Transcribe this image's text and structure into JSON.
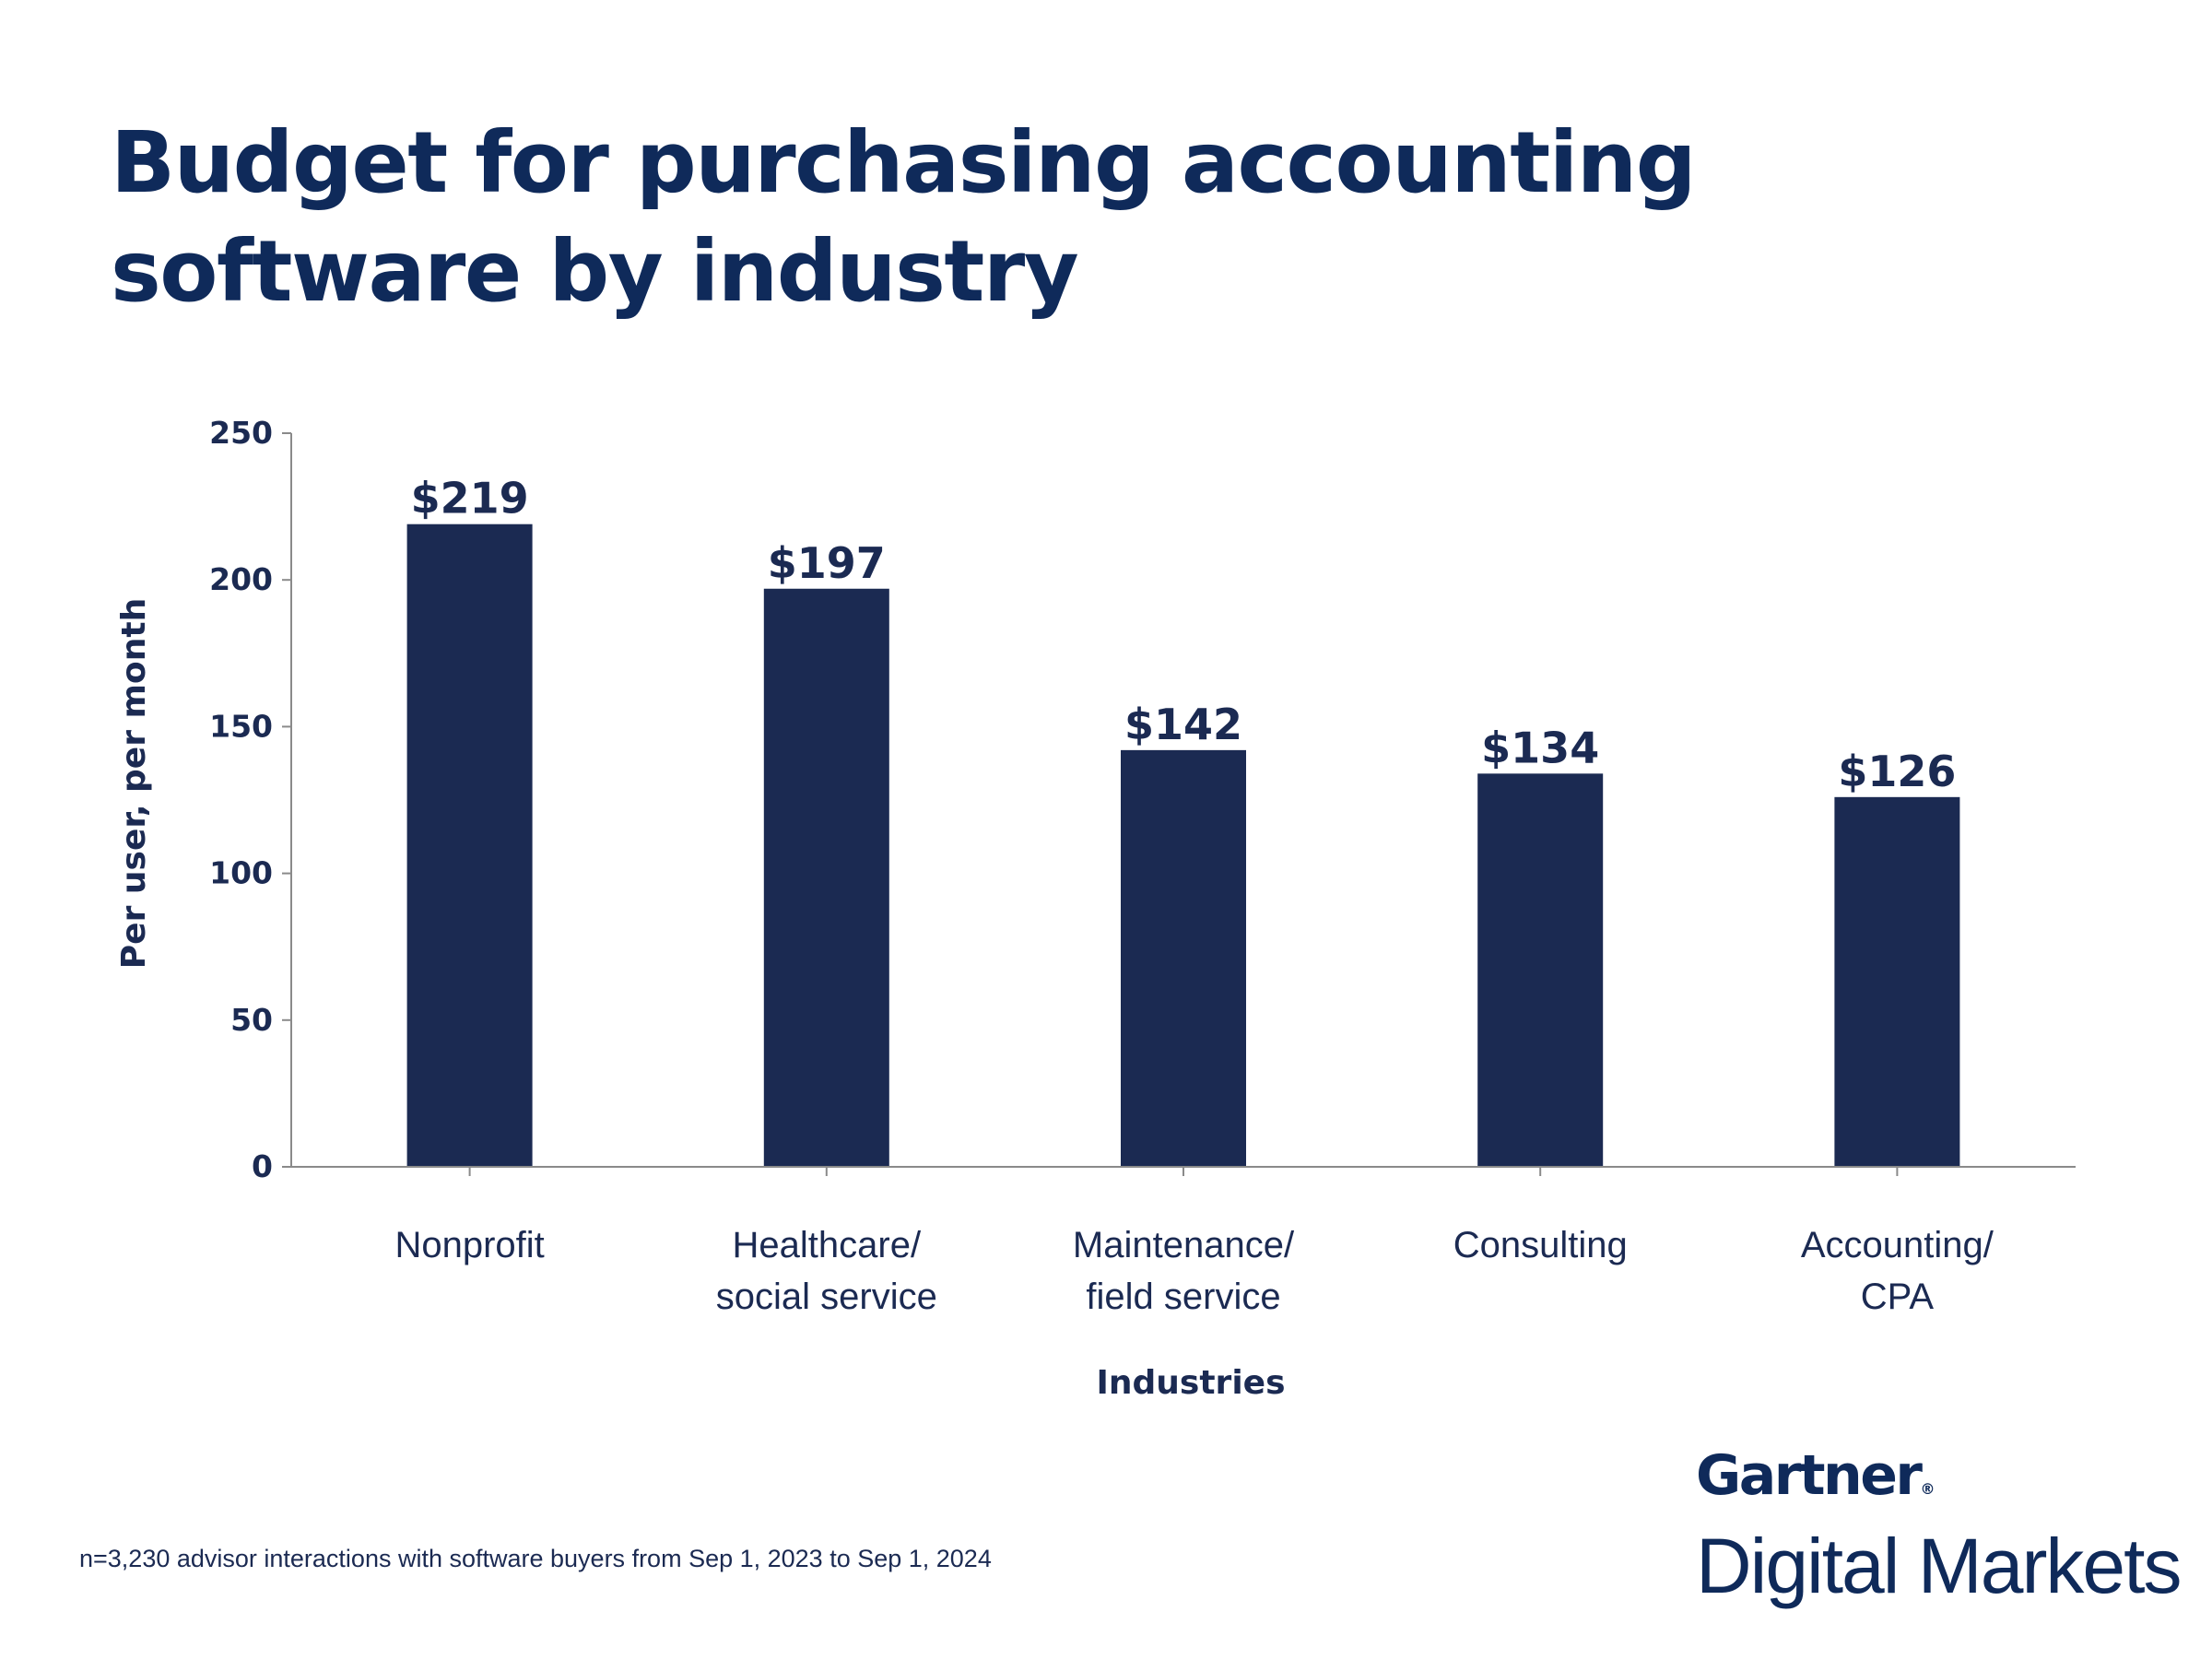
{
  "chart_data": {
    "type": "bar",
    "title": "Budget for purchasing accounting software by industry",
    "xlabel": "Industries",
    "ylabel": "Per user, per month",
    "ylim": [
      0,
      250
    ],
    "yticks": [
      0,
      50,
      100,
      150,
      200,
      250
    ],
    "categories": [
      [
        "Nonprofit"
      ],
      [
        "Healthcare/",
        "social service"
      ],
      [
        "Maintenance/",
        "field service"
      ],
      [
        "Consulting"
      ],
      [
        "Accounting/",
        "CPA"
      ]
    ],
    "values": [
      219,
      197,
      142,
      134,
      126
    ],
    "data_labels": [
      "$219",
      "$197",
      "$142",
      "$134",
      "$126"
    ],
    "grid": false,
    "legend": "none",
    "bar_color": "#1b2a52"
  },
  "footnote": "n=3,230 advisor interactions with software buyers from Sep 1, 2023 to Sep 1, 2024",
  "logo": {
    "line1": "Gartner",
    "mark": "®",
    "line2": "Digital Markets"
  },
  "colors": {
    "title": "#0f2a5a",
    "bar": "#1b2a52",
    "axis": "#8a8a8a"
  }
}
